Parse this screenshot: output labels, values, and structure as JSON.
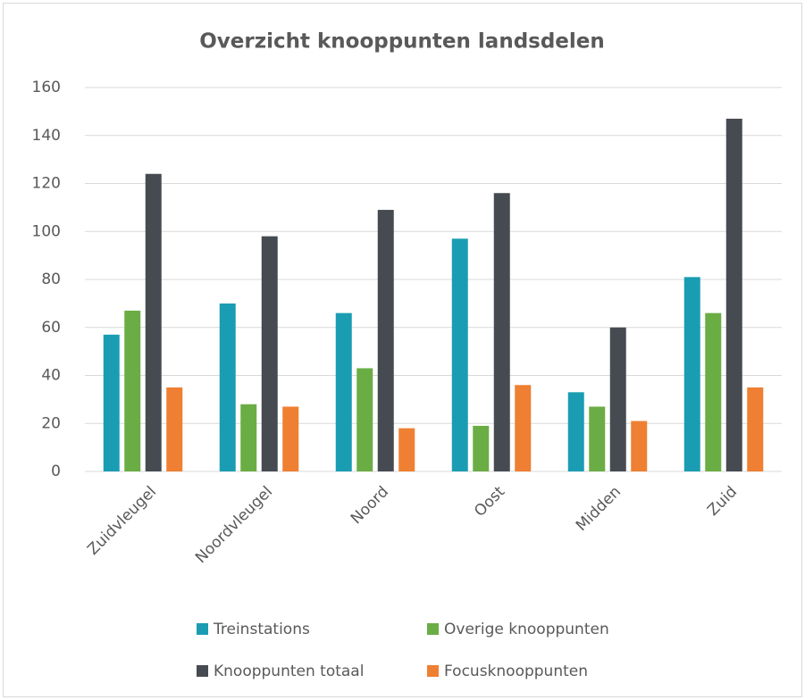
{
  "chart_data": {
    "type": "bar",
    "title": "Overzicht knooppunten landsdelen",
    "categories": [
      "Zuidvleugel",
      "Noordvleugel",
      "Noord",
      "Oost",
      "Midden",
      "Zuid"
    ],
    "series": [
      {
        "name": "Treinstations",
        "color": "#1a9db3",
        "values": [
          57,
          70,
          66,
          97,
          33,
          81
        ]
      },
      {
        "name": "Overige knooppunten",
        "color": "#6aad45",
        "values": [
          67,
          28,
          43,
          19,
          27,
          66
        ]
      },
      {
        "name": "Knooppunten totaal",
        "color": "#464b52",
        "values": [
          124,
          98,
          109,
          116,
          60,
          147
        ]
      },
      {
        "name": "Focusknooppunten",
        "color": "#ef7f32",
        "values": [
          35,
          27,
          18,
          36,
          21,
          35
        ]
      }
    ],
    "ylim": [
      0,
      160
    ],
    "yticks": [
      0,
      20,
      40,
      60,
      80,
      100,
      120,
      140,
      160
    ],
    "grid": true,
    "legend": "bottom"
  }
}
